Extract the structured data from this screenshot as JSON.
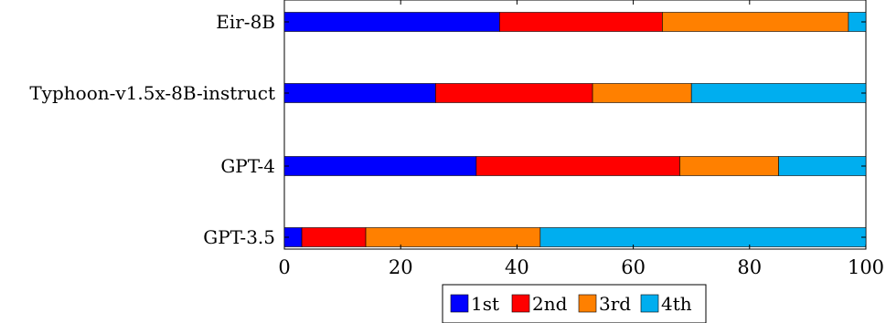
{
  "chart_data": {
    "type": "bar",
    "orientation": "horizontal",
    "stacked": true,
    "categories": [
      "Eir-8B",
      "Typhoon-v1.5x-8B-instruct",
      "GPT-4",
      "GPT-3.5"
    ],
    "series": [
      {
        "name": "1st",
        "color": "#0000ff",
        "values": [
          37,
          26,
          33,
          3
        ]
      },
      {
        "name": "2nd",
        "color": "#ff0000",
        "values": [
          28,
          27,
          35,
          11
        ]
      },
      {
        "name": "3rd",
        "color": "#ff8000",
        "values": [
          32,
          17,
          17,
          30
        ]
      },
      {
        "name": "4th",
        "color": "#00aeef",
        "values": [
          3,
          30,
          15,
          56
        ]
      }
    ],
    "xlim": [
      0,
      100
    ],
    "x_ticks": [
      0,
      20,
      40,
      60,
      80,
      100
    ],
    "x_tick_labels": [
      "0",
      "20",
      "40",
      "60",
      "80",
      "100"
    ],
    "grid": false,
    "legend_position": "bottom"
  }
}
